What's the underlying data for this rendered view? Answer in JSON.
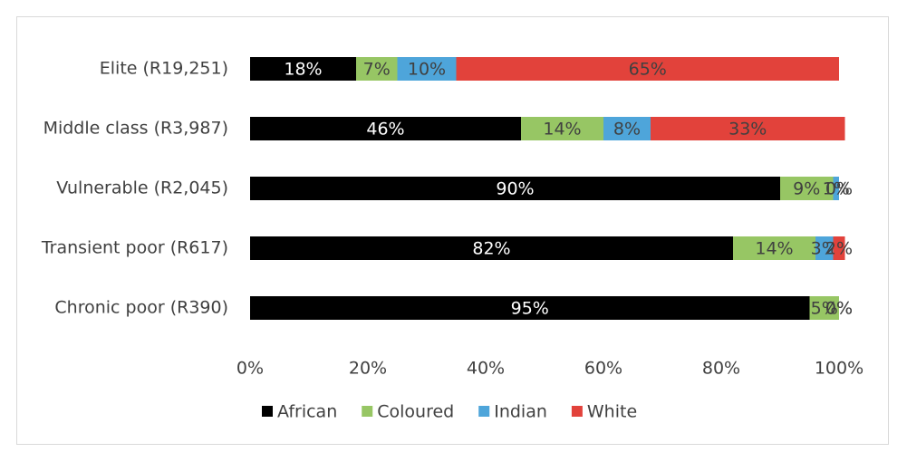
{
  "chart_data": {
    "type": "stacked_bar_horizontal",
    "categories": [
      "Elite (R19,251)",
      "Middle class (R3,987)",
      "Vulnerable (R2,045)",
      "Transient poor (R617)",
      "Chronic poor (R390)"
    ],
    "series": [
      {
        "name": "African",
        "color": "#000000",
        "values": [
          18,
          46,
          90,
          82,
          95
        ],
        "value_labels": [
          "18%",
          "46%",
          "90%",
          "82%",
          "95%"
        ]
      },
      {
        "name": "Coloured",
        "color": "#97c664",
        "values": [
          7,
          14,
          9,
          14,
          5
        ],
        "value_labels": [
          "7%",
          "14%",
          "9%",
          "14%",
          "5%"
        ]
      },
      {
        "name": "Indian",
        "color": "#4ea5da",
        "values": [
          10,
          8,
          1,
          3,
          0
        ],
        "value_labels": [
          "10%",
          "8%",
          "1%",
          "3%",
          "0%"
        ]
      },
      {
        "name": "White",
        "color": "#e2423b",
        "values": [
          65,
          33,
          0,
          2,
          0
        ],
        "value_labels": [
          "65%",
          "33%",
          "0%",
          "2%",
          "0%"
        ]
      }
    ],
    "xlim": [
      0,
      100
    ],
    "xticks": [
      {
        "value": 0,
        "label": "0%"
      },
      {
        "value": 20,
        "label": "20%"
      },
      {
        "value": 40,
        "label": "40%"
      },
      {
        "value": 60,
        "label": "60%"
      },
      {
        "value": 80,
        "label": "80%"
      },
      {
        "value": 100,
        "label": "100%"
      }
    ],
    "legend": "bottom"
  }
}
